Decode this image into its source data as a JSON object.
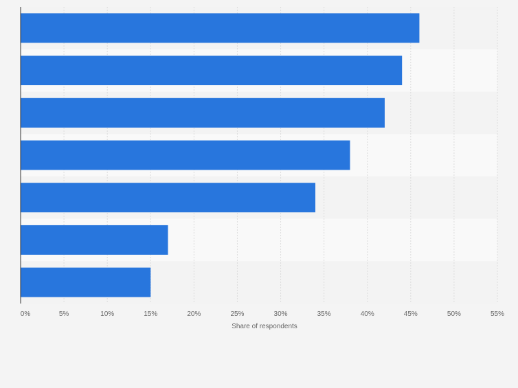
{
  "chart_data": {
    "type": "bar",
    "orientation": "horizontal",
    "categories": [
      "",
      "",
      "",
      "",
      "",
      "",
      ""
    ],
    "values": [
      46,
      44,
      42,
      38,
      34,
      17,
      15
    ],
    "xlim": [
      0,
      55
    ],
    "ticks": [
      "0%",
      "5%",
      "10%",
      "15%",
      "20%",
      "25%",
      "30%",
      "35%",
      "40%",
      "45%",
      "50%",
      "55%"
    ],
    "xlabel": "Share of respondents",
    "ylabel": "",
    "title": "",
    "grid": true,
    "legend": "none"
  },
  "colors": {
    "bar": "#2876dd",
    "background": "#f4f4f4",
    "band_light": "#f9f9f9",
    "band_dark": "#f3f3f3",
    "grid": "#dcdcdc",
    "axis": "#333333",
    "tick_text": "#666666"
  }
}
